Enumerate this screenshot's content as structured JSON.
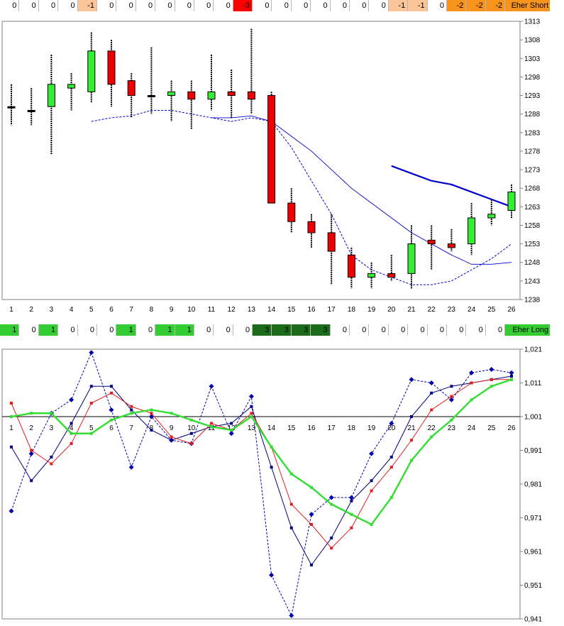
{
  "strips": {
    "short": {
      "label": "Eher Short",
      "values": [
        "0",
        "0",
        "0",
        "0",
        "-1",
        "0",
        "0",
        "0",
        "0",
        "0",
        "0",
        "0",
        "-3",
        "0",
        "0",
        "0",
        "0",
        "0",
        "0",
        "0",
        "-1",
        "-1",
        "0",
        "-2",
        "-2",
        "-2"
      ],
      "colors": [
        "#ffffff",
        "#ffffff",
        "#ffffff",
        "#ffffff",
        "#fbc59a",
        "#ffffff",
        "#ffffff",
        "#ffffff",
        "#ffffff",
        "#ffffff",
        "#ffffff",
        "#ffffff",
        "#ff0000",
        "#ffffff",
        "#ffffff",
        "#ffffff",
        "#ffffff",
        "#ffffff",
        "#ffffff",
        "#ffffff",
        "#fbc59a",
        "#fbc59a",
        "#ffffff",
        "#f7941d",
        "#f7941d",
        "#f7941d"
      ],
      "label_color": "#f7941d"
    },
    "long": {
      "label": "Eher Long",
      "values": [
        "1",
        "0",
        "1",
        "0",
        "0",
        "0",
        "1",
        "0",
        "1",
        "1",
        "0",
        "0",
        "0",
        "3",
        "3",
        "3",
        "3",
        "0",
        "0",
        "0",
        "0",
        "0",
        "0",
        "0",
        "0",
        "0"
      ],
      "colors": [
        "#33cc33",
        "#ffffff",
        "#33cc33",
        "#ffffff",
        "#ffffff",
        "#ffffff",
        "#33cc33",
        "#ffffff",
        "#33cc33",
        "#33cc33",
        "#ffffff",
        "#ffffff",
        "#ffffff",
        "#1b6b1b",
        "#1b6b1b",
        "#1b6b1b",
        "#1b6b1b",
        "#ffffff",
        "#ffffff",
        "#ffffff",
        "#ffffff",
        "#ffffff",
        "#ffffff",
        "#ffffff",
        "#ffffff",
        "#ffffff"
      ],
      "label_color": "#33cc33"
    }
  },
  "chart_data": [
    {
      "type": "candlestick",
      "x": [
        1,
        2,
        3,
        4,
        5,
        6,
        7,
        8,
        9,
        10,
        11,
        12,
        13,
        14,
        15,
        16,
        17,
        18,
        19,
        20,
        21,
        22,
        23,
        24,
        25,
        26
      ],
      "ylim": [
        1238,
        1313
      ],
      "yticks": [
        1238,
        1243,
        1248,
        1253,
        1258,
        1263,
        1268,
        1273,
        1278,
        1283,
        1288,
        1293,
        1298,
        1303,
        1308,
        1313
      ],
      "candles": [
        {
          "o": 1290,
          "h": 1296,
          "l": 1285,
          "c": 1290
        },
        {
          "o": 1289,
          "h": 1295,
          "l": 1285,
          "c": 1289
        },
        {
          "o": 1290,
          "h": 1304,
          "l": 1277,
          "c": 1296
        },
        {
          "o": 1295,
          "h": 1299,
          "l": 1289,
          "c": 1296
        },
        {
          "o": 1294,
          "h": 1310,
          "l": 1291,
          "c": 1305
        },
        {
          "o": 1305,
          "h": 1308,
          "l": 1290,
          "c": 1296
        },
        {
          "o": 1297,
          "h": 1299,
          "l": 1287,
          "c": 1293
        },
        {
          "o": 1293,
          "h": 1306,
          "l": 1288,
          "c": 1293
        },
        {
          "o": 1293,
          "h": 1297,
          "l": 1286,
          "c": 1294
        },
        {
          "o": 1294,
          "h": 1297,
          "l": 1284,
          "c": 1292
        },
        {
          "o": 1292,
          "h": 1304,
          "l": 1289,
          "c": 1294
        },
        {
          "o": 1294,
          "h": 1300,
          "l": 1287,
          "c": 1293
        },
        {
          "o": 1294,
          "h": 1311,
          "l": 1288,
          "c": 1292
        },
        {
          "o": 1293,
          "h": 1294,
          "l": 1264,
          "c": 1264
        },
        {
          "o": 1264,
          "h": 1268,
          "l": 1256,
          "c": 1259
        },
        {
          "o": 1259,
          "h": 1261,
          "l": 1252,
          "c": 1256
        },
        {
          "o": 1256,
          "h": 1261,
          "l": 1242,
          "c": 1251
        },
        {
          "o": 1250,
          "h": 1252,
          "l": 1241,
          "c": 1244
        },
        {
          "o": 1244,
          "h": 1248,
          "l": 1241,
          "c": 1245
        },
        {
          "o": 1245,
          "h": 1250,
          "l": 1243,
          "c": 1244
        },
        {
          "o": 1245,
          "h": 1258,
          "l": 1241,
          "c": 1253
        },
        {
          "o": 1254,
          "h": 1258,
          "l": 1246,
          "c": 1253
        },
        {
          "o": 1253,
          "h": 1257,
          "l": 1251,
          "c": 1252
        },
        {
          "o": 1253,
          "h": 1264,
          "l": 1250,
          "c": 1260
        },
        {
          "o": 1260,
          "h": 1265,
          "l": 1258,
          "c": 1261
        },
        {
          "o": 1262,
          "h": 1269,
          "l": 1260,
          "c": 1267
        }
      ],
      "lines": [
        {
          "style": "thin",
          "color": "#0000cc",
          "points": [
            [
              11,
              1287
            ],
            [
              12,
              1287
            ],
            [
              13,
              1287.5
            ],
            [
              14,
              1286
            ],
            [
              15,
              1282
            ],
            [
              16,
              1278
            ],
            [
              17,
              1273
            ],
            [
              18,
              1268
            ],
            [
              19,
              1264
            ],
            [
              20,
              1260
            ],
            [
              21,
              1256
            ],
            [
              22,
              1253
            ],
            [
              23,
              1250
            ],
            [
              24,
              1247.5
            ],
            [
              25,
              1247.5
            ],
            [
              26,
              1248
            ]
          ]
        },
        {
          "style": "dashed",
          "color": "#0000cc",
          "points": [
            [
              5,
              1286
            ],
            [
              6,
              1287
            ],
            [
              7,
              1287.5
            ],
            [
              8,
              1289
            ],
            [
              9,
              1289
            ],
            [
              10,
              1288
            ],
            [
              11,
              1287
            ],
            [
              12,
              1286
            ],
            [
              13,
              1287
            ],
            [
              14,
              1286
            ],
            [
              15,
              1279
            ],
            [
              16,
              1270
            ],
            [
              17,
              1261
            ],
            [
              18,
              1250
            ],
            [
              19,
              1246
            ],
            [
              20,
              1244
            ],
            [
              21,
              1242
            ],
            [
              22,
              1242
            ],
            [
              23,
              1243
            ],
            [
              24,
              1246
            ],
            [
              25,
              1249
            ],
            [
              26,
              1253
            ]
          ]
        },
        {
          "style": "thick",
          "color": "#0000cc",
          "points": [
            [
              20,
              1274
            ],
            [
              21,
              1272
            ],
            [
              22,
              1270
            ],
            [
              23,
              1269
            ],
            [
              24,
              1267
            ],
            [
              25,
              1265
            ],
            [
              26,
              1263
            ]
          ]
        }
      ]
    },
    {
      "type": "line",
      "x": [
        1,
        2,
        3,
        4,
        5,
        6,
        7,
        8,
        9,
        10,
        11,
        12,
        13,
        14,
        15,
        16,
        17,
        18,
        19,
        20,
        21,
        22,
        23,
        24,
        25,
        26
      ],
      "ylim": [
        0.941,
        1.021
      ],
      "yticks": [
        "0,941",
        "0,951",
        "0,961",
        "0,971",
        "0,981",
        "0,991",
        "1,001",
        "1,011",
        "1,021"
      ],
      "ytick_values": [
        0.941,
        0.951,
        0.961,
        0.971,
        0.981,
        0.991,
        1.001,
        1.011,
        1.021
      ],
      "baseline": 1.001,
      "series": [
        {
          "style": "dashed",
          "color": "#0000aa",
          "marker": "diamond",
          "values": [
            0.973,
            0.99,
            1.002,
            1.006,
            1.02,
            1.003,
            0.986,
            1.001,
            0.994,
            0.993,
            1.01,
            0.996,
            1.007,
            0.954,
            0.942,
            0.972,
            0.977,
            0.977,
            0.99,
            0.999,
            1.012,
            1.011,
            1.006,
            1.014,
            1.015,
            1.014
          ]
        },
        {
          "style": "solid",
          "color": "#000080",
          "marker": "square",
          "values": [
            0.992,
            0.982,
            0.989,
            0.999,
            1.01,
            1.01,
            1.003,
            0.997,
            0.994,
            0.996,
            0.998,
            0.999,
            1.004,
            0.986,
            0.968,
            0.957,
            0.965,
            0.976,
            0.982,
            0.989,
            1.001,
            1.008,
            1.01,
            1.011,
            1.012,
            1.013
          ]
        },
        {
          "style": "solid",
          "color": "#e02020",
          "marker": "square",
          "values": [
            1.005,
            0.991,
            0.987,
            0.993,
            1.005,
            1.008,
            1.004,
            1.002,
            0.995,
            0.993,
            0.999,
            0.997,
            1.002,
            0.992,
            0.975,
            0.969,
            0.962,
            0.968,
            0.979,
            0.986,
            0.994,
            1.003,
            1.007,
            1.011,
            1.012,
            1.012
          ]
        },
        {
          "style": "thick",
          "color": "#33dd33",
          "marker": "square",
          "values": [
            1.001,
            1.002,
            1.002,
            0.996,
            0.996,
            1.0,
            1.002,
            1.003,
            1.002,
            1.0,
            0.998,
            0.997,
            1.001,
            0.992,
            0.984,
            0.98,
            0.975,
            0.972,
            0.969,
            0.977,
            0.988,
            0.995,
            1.0,
            1.006,
            1.01,
            1.012
          ]
        }
      ]
    }
  ]
}
